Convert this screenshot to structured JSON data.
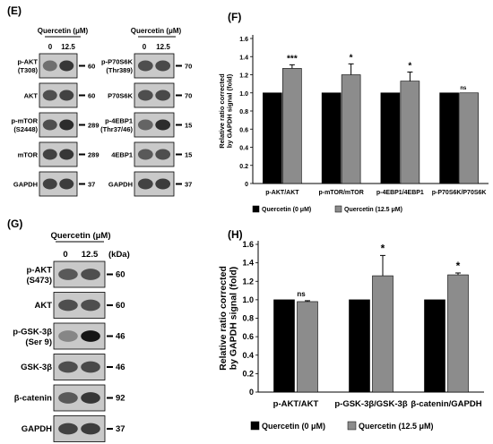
{
  "panels": {
    "E": {
      "letter": "(E)",
      "treatment_label": "Quercetin (μM)",
      "lanes": [
        "0",
        "12.5"
      ],
      "left_rows": [
        {
          "label": "p-AKT\n(T308)",
          "mw": "60",
          "intensity": [
            0.55,
            0.8
          ]
        },
        {
          "label": "AKT",
          "mw": "60",
          "intensity": [
            0.7,
            0.75
          ]
        },
        {
          "label": "p-mTOR\n(S2448)",
          "mw": "289",
          "intensity": [
            0.7,
            0.85
          ]
        },
        {
          "label": "mTOR",
          "mw": "289",
          "intensity": [
            0.75,
            0.8
          ]
        },
        {
          "label": "GAPDH",
          "mw": "37",
          "intensity": [
            0.75,
            0.78
          ]
        }
      ],
      "right_rows": [
        {
          "label": "p-P70S6K\n(Thr389)",
          "mw": "70",
          "intensity": [
            0.7,
            0.72
          ]
        },
        {
          "label": "P70S6K",
          "mw": "70",
          "intensity": [
            0.7,
            0.72
          ]
        },
        {
          "label": "p-4EBP1\n(Thr37/46)",
          "mw": "15",
          "intensity": [
            0.6,
            0.85
          ]
        },
        {
          "label": "4EBP1",
          "mw": "15",
          "intensity": [
            0.65,
            0.7
          ]
        },
        {
          "label": "GAPDH",
          "mw": "37",
          "intensity": [
            0.75,
            0.78
          ]
        }
      ]
    },
    "G": {
      "letter": "(G)",
      "treatment_label": "Quercetin (μM)",
      "lanes": [
        "0",
        "12.5"
      ],
      "kda_label": "(kDa)",
      "rows": [
        {
          "label": "p-AKT\n(S473)",
          "mw": "60",
          "intensity": [
            0.65,
            0.7
          ]
        },
        {
          "label": "AKT",
          "mw": "60",
          "intensity": [
            0.7,
            0.7
          ]
        },
        {
          "label": "p-GSK-3β\n(Ser 9)",
          "mw": "46",
          "intensity": [
            0.45,
            0.95
          ]
        },
        {
          "label": "GSK-3β",
          "mw": "46",
          "intensity": [
            0.7,
            0.72
          ]
        },
        {
          "label": "β-catenin",
          "mw": "92",
          "intensity": [
            0.65,
            0.8
          ]
        },
        {
          "label": "GAPDH",
          "mw": "37",
          "intensity": [
            0.75,
            0.78
          ]
        }
      ]
    }
  },
  "chart_data": [
    {
      "panel": "(F)",
      "type": "bar",
      "ylabel": "Relative ratio corrected\nby GAPDH signal (fold)",
      "ylim": [
        0,
        1.6
      ],
      "yticks": [
        "0",
        "0.2",
        "0.4",
        "0.6",
        "0.8",
        "1.0",
        "1.2",
        "1.4",
        "1.6"
      ],
      "categories": [
        "p-AKT/AKT",
        "p-mTOR/mTOR",
        "p-4EBP1/4EBP1",
        "p-P70S6K/P70S6K"
      ],
      "series": [
        {
          "name": "Quercetin (0 μM)",
          "color": "#000000",
          "values": [
            1.0,
            1.0,
            1.0,
            1.0
          ],
          "errors": [
            0,
            0,
            0,
            0
          ]
        },
        {
          "name": "Quercetin (12.5 μM)",
          "color": "#8c8c8c",
          "values": [
            1.27,
            1.2,
            1.13,
            1.0
          ],
          "errors": [
            0.04,
            0.12,
            0.1,
            0
          ]
        }
      ],
      "annotations": [
        "***",
        "*",
        "*",
        "ns"
      ],
      "legend": "bottom"
    },
    {
      "panel": "(H)",
      "type": "bar",
      "ylabel": "Relative ratio corrected\nby GAPDH signal (fold)",
      "ylim": [
        0,
        1.6
      ],
      "yticks": [
        "0",
        "0.2",
        "0.4",
        "0.6",
        "0.8",
        "1.0",
        "1.2",
        "1.4",
        "1.6"
      ],
      "categories": [
        "p-AKT/AKT",
        "p-GSK-3β/GSK-3β",
        "β-catenin/GAPDH"
      ],
      "series": [
        {
          "name": "Quercetin (0 μM)",
          "color": "#000000",
          "values": [
            1.0,
            1.0,
            1.0
          ],
          "errors": [
            0,
            0,
            0
          ]
        },
        {
          "name": "Quercetin (12.5 μM)",
          "color": "#8c8c8c",
          "values": [
            0.98,
            1.26,
            1.27
          ],
          "errors": [
            0.01,
            0.22,
            0.02
          ]
        }
      ],
      "annotations": [
        "ns",
        "*",
        "*"
      ],
      "legend": "bottom"
    }
  ]
}
